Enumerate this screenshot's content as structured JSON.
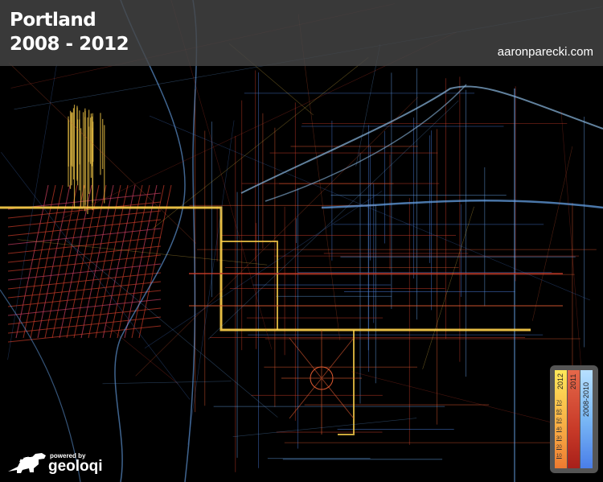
{
  "header": {
    "title_line1": "Portland",
    "title_line2": "2008 - 2012",
    "credit": "aaronparecki.com"
  },
  "legend": {
    "series": [
      {
        "label": "2012",
        "color": "#ffd24a"
      },
      {
        "label": "2011",
        "color": "#c83a28"
      },
      {
        "label": "2008-2010",
        "color": "#6aa8f0"
      }
    ],
    "ticks": [
      "70",
      "60",
      "50",
      "40",
      "30",
      "20",
      "10"
    ]
  },
  "branding": {
    "powered_by": "powered by",
    "name": "geoloqi",
    "icon": "dinosaur-logo-icon"
  },
  "colors": {
    "background": "#000000",
    "y2012": "#ffd24a",
    "y2011": "#c83a28",
    "y2008_2010": "#6aa8f0"
  }
}
